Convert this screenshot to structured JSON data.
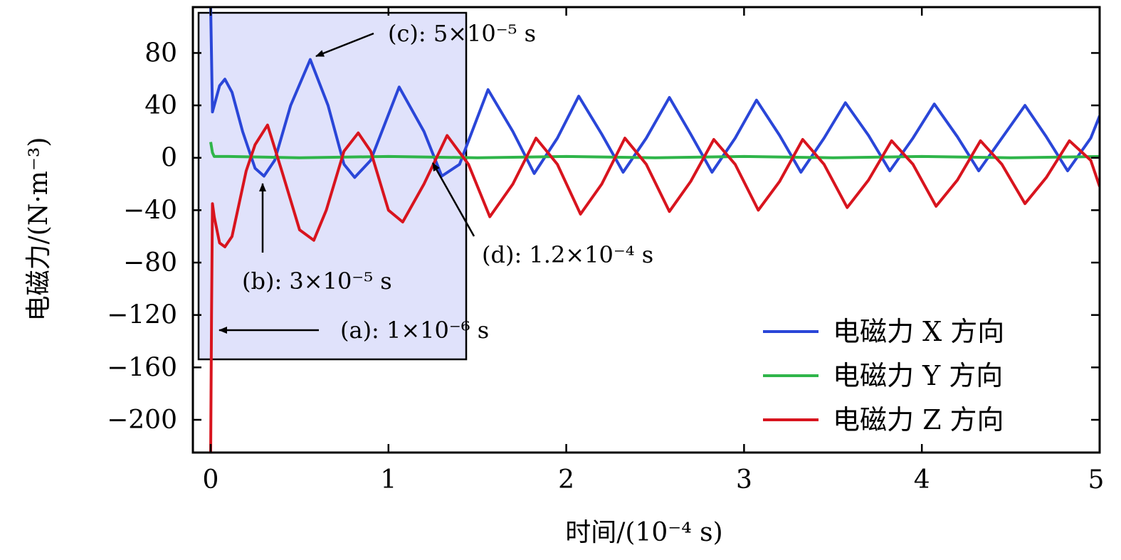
{
  "chart_data": {
    "type": "line",
    "xlabel": "时间/(10⁻⁴ s)",
    "ylabel": "电磁力/(N·m⁻³)",
    "xlim": [
      -0.1,
      5
    ],
    "ylim": [
      -225,
      115
    ],
    "xticks": [
      "0",
      "1",
      "2",
      "3",
      "4",
      "5"
    ],
    "yticks": [
      "80",
      "40",
      "0",
      "−40",
      "−80",
      "−120",
      "−160",
      "−200"
    ],
    "legend_position": "bottom-right",
    "series": [
      {
        "name": "电磁力 X 方向",
        "color": "#2a46d8",
        "x": [
          0,
          0.01,
          0.02,
          0.05,
          0.08,
          0.12,
          0.18,
          0.25,
          0.3,
          0.36,
          0.45,
          0.56,
          0.66,
          0.75,
          0.81,
          0.9,
          1.06,
          1.2,
          1.3,
          1.4,
          1.56,
          1.7,
          1.82,
          1.95,
          2.07,
          2.2,
          2.32,
          2.45,
          2.58,
          2.7,
          2.82,
          2.95,
          3.07,
          3.2,
          3.32,
          3.45,
          3.57,
          3.7,
          3.82,
          3.95,
          4.07,
          4.2,
          4.32,
          4.45,
          4.58,
          4.7,
          4.82,
          4.95,
          5.0
        ],
        "y": [
          115,
          35,
          40,
          55,
          60,
          50,
          20,
          -8,
          -14,
          -2,
          40,
          75,
          40,
          -5,
          -15,
          -2,
          54,
          20,
          -14,
          -5,
          52,
          20,
          -12,
          15,
          47,
          18,
          -11,
          15,
          46,
          18,
          -11,
          15,
          44,
          17,
          -11,
          15,
          42,
          17,
          -10,
          15,
          41,
          16,
          -10,
          15,
          40,
          16,
          -10,
          15,
          32
        ]
      },
      {
        "name": "电磁力 Y 方向",
        "color": "#2fb54a",
        "x": [
          0,
          0.01,
          0.02,
          0.1,
          0.5,
          1.0,
          1.5,
          2.0,
          2.5,
          3.0,
          3.5,
          4.0,
          4.5,
          5.0
        ],
        "y": [
          12,
          4,
          1,
          1,
          0,
          1,
          0,
          1,
          0,
          1,
          0,
          1,
          0,
          1
        ]
      },
      {
        "name": "电磁力 Z 方向",
        "color": "#d8141e",
        "x": [
          0,
          0.005,
          0.01,
          0.02,
          0.05,
          0.08,
          0.12,
          0.2,
          0.25,
          0.32,
          0.4,
          0.5,
          0.58,
          0.65,
          0.75,
          0.83,
          0.9,
          1.0,
          1.08,
          1.2,
          1.33,
          1.45,
          1.57,
          1.7,
          1.83,
          1.95,
          2.08,
          2.2,
          2.33,
          2.45,
          2.58,
          2.7,
          2.83,
          2.95,
          3.08,
          3.2,
          3.33,
          3.45,
          3.58,
          3.7,
          3.83,
          3.95,
          4.08,
          4.2,
          4.33,
          4.45,
          4.58,
          4.7,
          4.83,
          4.95,
          5.0
        ],
        "y": [
          -225,
          -120,
          -35,
          -45,
          -65,
          -68,
          -60,
          -10,
          10,
          25,
          -10,
          -55,
          -63,
          -40,
          5,
          19,
          5,
          -40,
          -49,
          -20,
          17,
          -5,
          -45,
          -20,
          15,
          -5,
          -43,
          -20,
          15,
          -5,
          -41,
          -18,
          14,
          -5,
          -40,
          -18,
          14,
          -5,
          -38,
          -17,
          13,
          -5,
          -37,
          -17,
          13,
          -5,
          -35,
          -15,
          13,
          -2,
          -22
        ]
      }
    ],
    "annotations": [
      {
        "label": "(a): 1×10⁻⁶ s"
      },
      {
        "label": "(b): 3×10⁻⁵ s"
      },
      {
        "label": "(c): 5×10⁻⁵ s"
      },
      {
        "label": "(d): 1.2×10⁻⁴ s"
      }
    ]
  }
}
